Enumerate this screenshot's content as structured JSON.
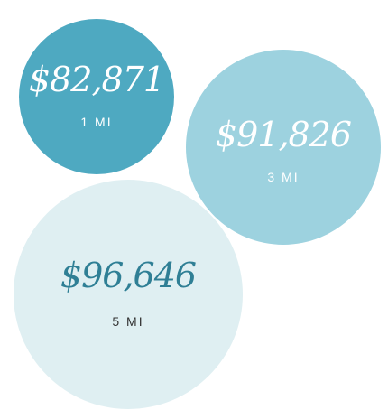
{
  "circles": [
    {
      "value": "$82,871",
      "radius": "1 MI"
    },
    {
      "value": "$91,826",
      "radius": "3 MI"
    },
    {
      "value": "$96,646",
      "radius": "5 MI"
    }
  ]
}
